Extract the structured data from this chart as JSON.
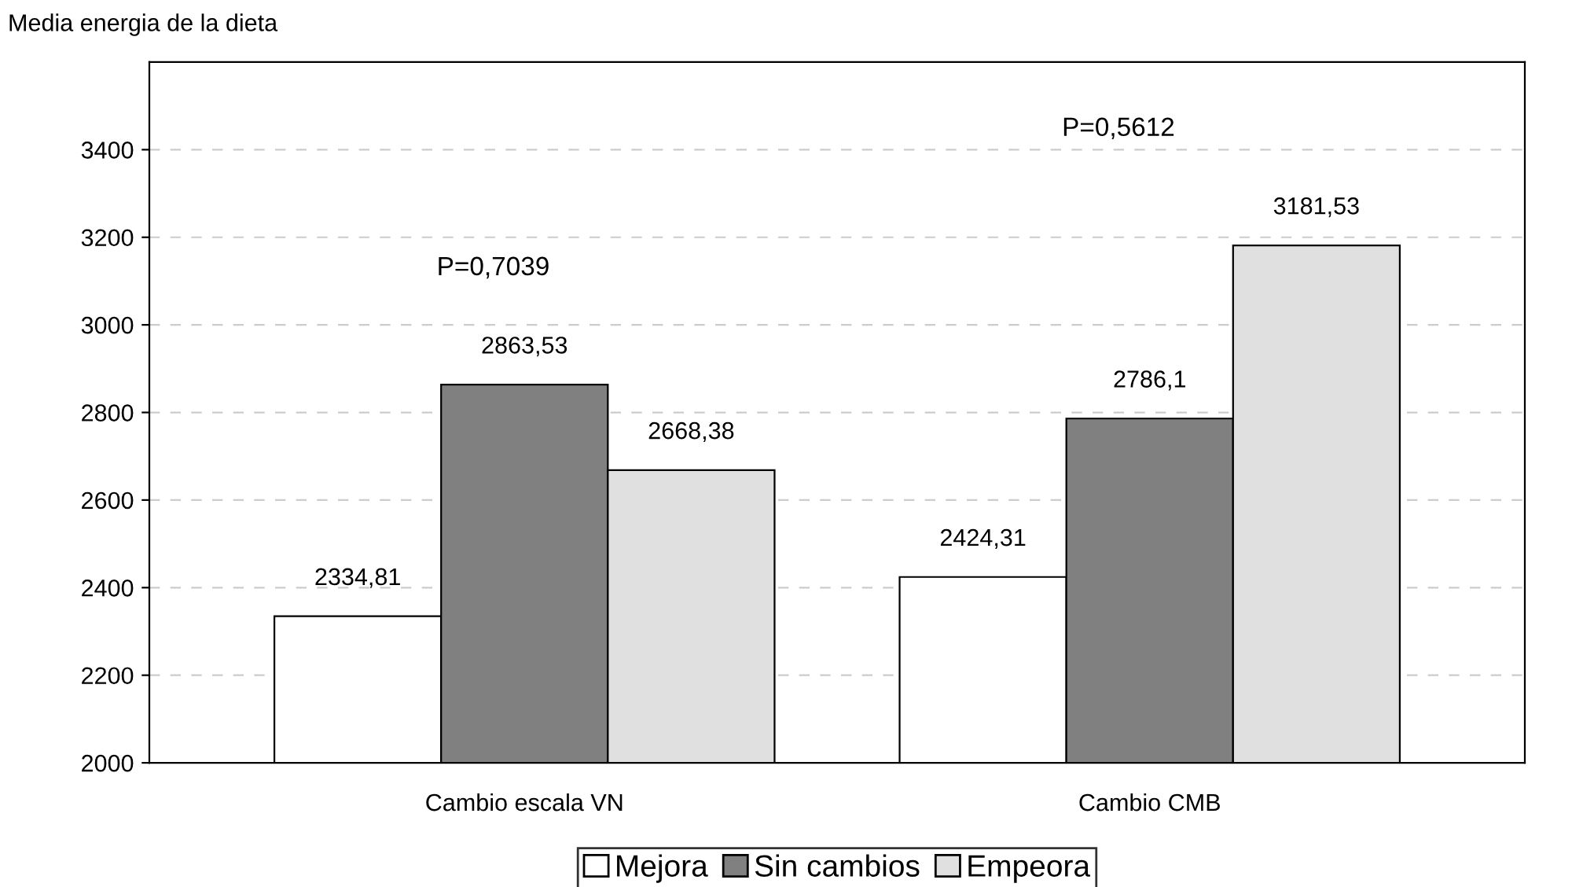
{
  "chart_data": {
    "type": "bar",
    "ylabel": "Media energia de la dieta",
    "categories": [
      "Cambio escala VN",
      "Cambio CMB"
    ],
    "series": [
      {
        "name": "Mejora",
        "color": "#ffffff",
        "values": [
          2334.81,
          2424.31
        ],
        "value_labels": [
          "2334,81",
          "2424,31"
        ]
      },
      {
        "name": "Sin cambios",
        "color": "#808080",
        "values": [
          2863.53,
          2786.1
        ],
        "value_labels": [
          "2863,53",
          "2786,1"
        ]
      },
      {
        "name": "Empeora",
        "color": "#e0e0e0",
        "values": [
          2668.38,
          3181.53
        ],
        "value_labels": [
          "2668,38",
          "3181,53"
        ]
      }
    ],
    "annotations": [
      "P=0,7039",
      "P=0,5612"
    ],
    "ylim": [
      2000,
      3600
    ],
    "yticks": [
      2000,
      2200,
      2400,
      2600,
      2800,
      3000,
      3200,
      3400
    ],
    "grid": "y",
    "legend": "bottom"
  }
}
